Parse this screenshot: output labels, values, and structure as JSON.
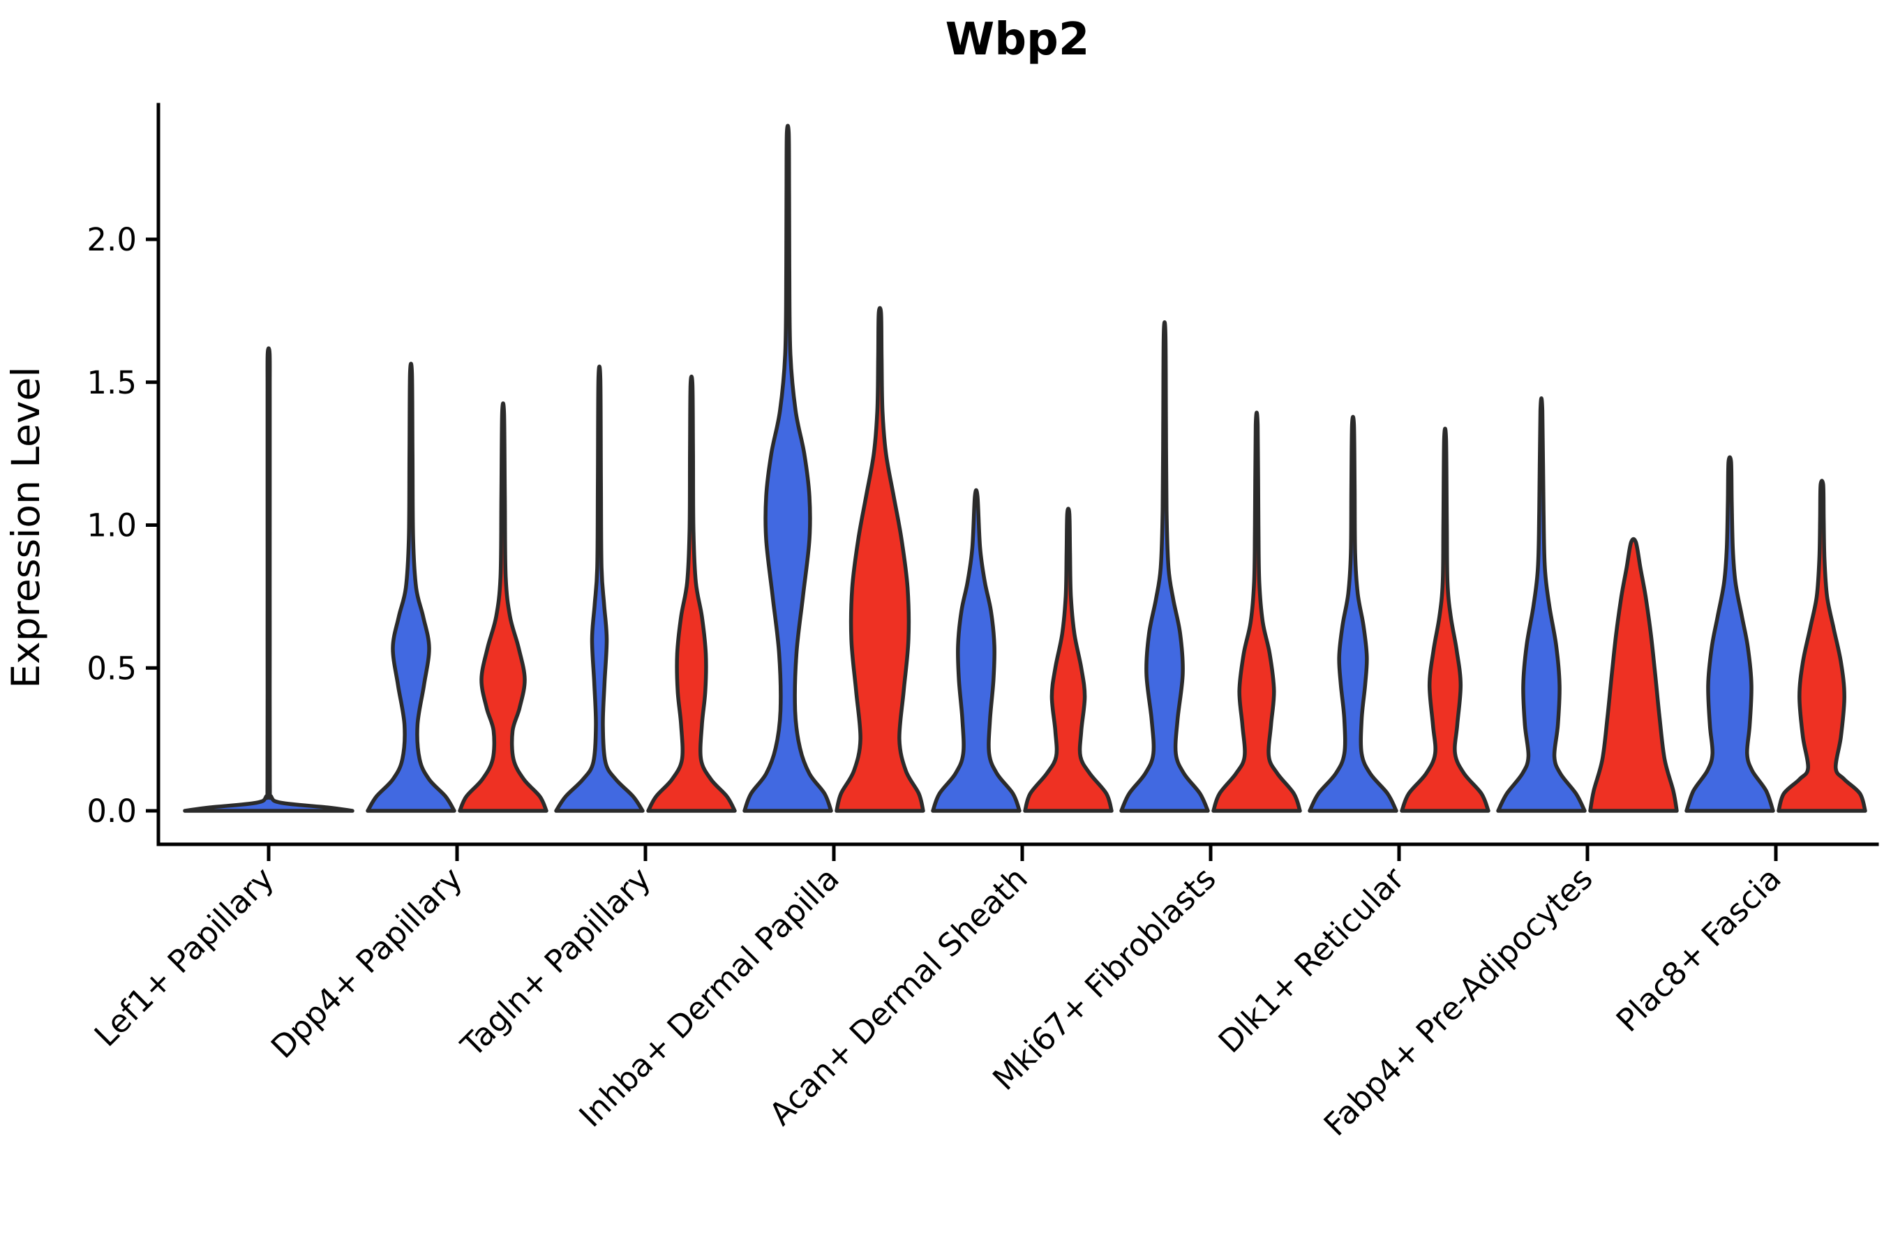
{
  "figure": {
    "background": "#ffffff"
  },
  "chart_data": {
    "type": "violin",
    "title": "Wbp2",
    "ylabel": "Expression Level",
    "xlabel": "",
    "grid": false,
    "legend": "none",
    "ytick_labels": [
      "0.0",
      "0.5",
      "1.0",
      "1.5",
      "2.0"
    ],
    "ytick_values": [
      0.0,
      0.5,
      1.0,
      1.5,
      2.0
    ],
    "ylim": [
      -0.12,
      2.47
    ],
    "colors": {
      "group1_fill": "#4169E1",
      "group2_fill": "#EE3123",
      "violin_edge": "#2B2B2B",
      "axis": "#000000"
    },
    "series_names": [
      "group-1-blue",
      "group-2-red"
    ],
    "categories": [
      {
        "label": "Lef1+ Papillary",
        "violins": [
          {
            "group": "combined",
            "color_key": "group1_fill",
            "span": "full",
            "max_expression": 1.6,
            "profile": [
              [
                0,
                1.0
              ],
              [
                0.012,
                0.7
              ],
              [
                0.028,
                0.15
              ],
              [
                0.05,
                0.03
              ],
              [
                0.1,
                0.014
              ],
              [
                0.6,
                0.013
              ],
              [
                1.1,
                0.013
              ],
              [
                1.45,
                0.013
              ],
              [
                1.6,
                0.012
              ]
            ]
          }
        ]
      },
      {
        "label": "Dpp4+ Papillary",
        "violins": [
          {
            "group": "blue",
            "color_key": "group1_fill",
            "span": "half",
            "max_expression": 1.53,
            "profile": [
              [
                0,
                1.0
              ],
              [
                0.05,
                0.8
              ],
              [
                0.11,
                0.42
              ],
              [
                0.18,
                0.2
              ],
              [
                0.3,
                0.15
              ],
              [
                0.44,
                0.3
              ],
              [
                0.57,
                0.42
              ],
              [
                0.68,
                0.28
              ],
              [
                0.78,
                0.12
              ],
              [
                0.95,
                0.05
              ],
              [
                1.25,
                0.035
              ],
              [
                1.53,
                0.022
              ]
            ]
          },
          {
            "group": "red",
            "color_key": "group2_fill",
            "span": "half",
            "max_expression": 1.39,
            "profile": [
              [
                0,
                1.0
              ],
              [
                0.05,
                0.85
              ],
              [
                0.11,
                0.48
              ],
              [
                0.18,
                0.24
              ],
              [
                0.28,
                0.22
              ],
              [
                0.36,
                0.38
              ],
              [
                0.46,
                0.5
              ],
              [
                0.57,
                0.36
              ],
              [
                0.68,
                0.16
              ],
              [
                0.82,
                0.06
              ],
              [
                1.1,
                0.04
              ],
              [
                1.39,
                0.022
              ]
            ]
          }
        ]
      },
      {
        "label": "Tagln+ Papillary",
        "violins": [
          {
            "group": "blue",
            "color_key": "group1_fill",
            "span": "half",
            "max_expression": 1.51,
            "profile": [
              [
                0,
                1.0
              ],
              [
                0.05,
                0.78
              ],
              [
                0.11,
                0.38
              ],
              [
                0.17,
                0.14
              ],
              [
                0.3,
                0.08
              ],
              [
                0.45,
                0.12
              ],
              [
                0.6,
                0.17
              ],
              [
                0.72,
                0.11
              ],
              [
                0.85,
                0.05
              ],
              [
                1.15,
                0.035
              ],
              [
                1.51,
                0.022
              ]
            ]
          },
          {
            "group": "red",
            "color_key": "group2_fill",
            "span": "half",
            "max_expression": 1.49,
            "profile": [
              [
                0,
                1.0
              ],
              [
                0.05,
                0.82
              ],
              [
                0.11,
                0.45
              ],
              [
                0.18,
                0.22
              ],
              [
                0.3,
                0.24
              ],
              [
                0.42,
                0.32
              ],
              [
                0.55,
                0.33
              ],
              [
                0.68,
                0.24
              ],
              [
                0.8,
                0.1
              ],
              [
                0.98,
                0.045
              ],
              [
                1.25,
                0.035
              ],
              [
                1.49,
                0.022
              ]
            ]
          }
        ]
      },
      {
        "label": "Inhba+ Dermal Papilla",
        "violins": [
          {
            "group": "blue",
            "color_key": "group1_fill",
            "span": "half",
            "max_expression": 2.37,
            "profile": [
              [
                0,
                1.0
              ],
              [
                0.06,
                0.85
              ],
              [
                0.13,
                0.5
              ],
              [
                0.22,
                0.28
              ],
              [
                0.35,
                0.17
              ],
              [
                0.55,
                0.2
              ],
              [
                0.75,
                0.35
              ],
              [
                0.95,
                0.5
              ],
              [
                1.1,
                0.5
              ],
              [
                1.25,
                0.38
              ],
              [
                1.4,
                0.18
              ],
              [
                1.6,
                0.06
              ],
              [
                1.9,
                0.035
              ],
              [
                2.15,
                0.03
              ],
              [
                2.37,
                0.022
              ]
            ]
          },
          {
            "group": "red",
            "color_key": "group2_fill",
            "span": "half",
            "max_expression": 1.74,
            "profile": [
              [
                0,
                1.0
              ],
              [
                0.06,
                0.9
              ],
              [
                0.14,
                0.6
              ],
              [
                0.25,
                0.45
              ],
              [
                0.42,
                0.55
              ],
              [
                0.6,
                0.66
              ],
              [
                0.78,
                0.64
              ],
              [
                0.95,
                0.5
              ],
              [
                1.1,
                0.32
              ],
              [
                1.25,
                0.14
              ],
              [
                1.4,
                0.06
              ],
              [
                1.58,
                0.04
              ],
              [
                1.74,
                0.028
              ]
            ]
          }
        ]
      },
      {
        "label": "Acan+ Dermal Sheath",
        "violins": [
          {
            "group": "blue",
            "color_key": "group1_fill",
            "span": "half",
            "max_expression": 1.1,
            "profile": [
              [
                0,
                1.0
              ],
              [
                0.06,
                0.85
              ],
              [
                0.13,
                0.48
              ],
              [
                0.2,
                0.3
              ],
              [
                0.32,
                0.32
              ],
              [
                0.46,
                0.4
              ],
              [
                0.58,
                0.42
              ],
              [
                0.7,
                0.34
              ],
              [
                0.8,
                0.2
              ],
              [
                0.92,
                0.09
              ],
              [
                1.1,
                0.03
              ]
            ]
          },
          {
            "group": "red",
            "color_key": "group2_fill",
            "span": "half",
            "max_expression": 1.04,
            "profile": [
              [
                0,
                1.0
              ],
              [
                0.06,
                0.88
              ],
              [
                0.13,
                0.5
              ],
              [
                0.19,
                0.28
              ],
              [
                0.28,
                0.3
              ],
              [
                0.4,
                0.38
              ],
              [
                0.5,
                0.3
              ],
              [
                0.62,
                0.14
              ],
              [
                0.75,
                0.06
              ],
              [
                0.9,
                0.04
              ],
              [
                1.04,
                0.025
              ]
            ]
          }
        ]
      },
      {
        "label": "Mki67+ Fibroblasts",
        "violins": [
          {
            "group": "blue",
            "color_key": "group1_fill",
            "span": "half",
            "max_expression": 1.67,
            "profile": [
              [
                0,
                1.0
              ],
              [
                0.06,
                0.82
              ],
              [
                0.13,
                0.45
              ],
              [
                0.2,
                0.26
              ],
              [
                0.32,
                0.3
              ],
              [
                0.48,
                0.42
              ],
              [
                0.62,
                0.36
              ],
              [
                0.74,
                0.2
              ],
              [
                0.85,
                0.09
              ],
              [
                1.05,
                0.045
              ],
              [
                1.35,
                0.032
              ],
              [
                1.67,
                0.02
              ]
            ]
          },
          {
            "group": "red",
            "color_key": "group2_fill",
            "span": "half",
            "max_expression": 1.35,
            "profile": [
              [
                0,
                1.0
              ],
              [
                0.06,
                0.86
              ],
              [
                0.13,
                0.48
              ],
              [
                0.19,
                0.28
              ],
              [
                0.3,
                0.33
              ],
              [
                0.42,
                0.4
              ],
              [
                0.55,
                0.3
              ],
              [
                0.66,
                0.14
              ],
              [
                0.8,
                0.06
              ],
              [
                1.0,
                0.04
              ],
              [
                1.35,
                0.022
              ]
            ]
          }
        ]
      },
      {
        "label": "Dlk1+ Reticular",
        "violins": [
          {
            "group": "blue",
            "color_key": "group1_fill",
            "span": "half",
            "max_expression": 1.35,
            "profile": [
              [
                0,
                1.0
              ],
              [
                0.06,
                0.8
              ],
              [
                0.13,
                0.4
              ],
              [
                0.2,
                0.2
              ],
              [
                0.32,
                0.2
              ],
              [
                0.44,
                0.28
              ],
              [
                0.54,
                0.32
              ],
              [
                0.65,
                0.24
              ],
              [
                0.76,
                0.11
              ],
              [
                0.9,
                0.05
              ],
              [
                1.12,
                0.038
              ],
              [
                1.35,
                0.022
              ]
            ]
          },
          {
            "group": "red",
            "color_key": "group2_fill",
            "span": "half",
            "max_expression": 1.3,
            "profile": [
              [
                0,
                1.0
              ],
              [
                0.06,
                0.84
              ],
              [
                0.13,
                0.44
              ],
              [
                0.2,
                0.23
              ],
              [
                0.3,
                0.28
              ],
              [
                0.44,
                0.36
              ],
              [
                0.56,
                0.27
              ],
              [
                0.68,
                0.13
              ],
              [
                0.8,
                0.055
              ],
              [
                1.0,
                0.04
              ],
              [
                1.3,
                0.022
              ]
            ]
          }
        ]
      },
      {
        "label": "Fabp4+ Pre-Adipocytes",
        "violins": [
          {
            "group": "blue",
            "color_key": "group1_fill",
            "span": "half",
            "max_expression": 1.4,
            "profile": [
              [
                0,
                1.0
              ],
              [
                0.06,
                0.8
              ],
              [
                0.13,
                0.44
              ],
              [
                0.19,
                0.3
              ],
              [
                0.3,
                0.38
              ],
              [
                0.44,
                0.42
              ],
              [
                0.58,
                0.34
              ],
              [
                0.72,
                0.18
              ],
              [
                0.85,
                0.08
              ],
              [
                1.05,
                0.05
              ],
              [
                1.4,
                0.022
              ]
            ]
          },
          {
            "group": "red",
            "color_key": "group2_fill",
            "span": "half",
            "max_expression": 0.94,
            "profile": [
              [
                0,
                1.0
              ],
              [
                0.07,
                0.92
              ],
              [
                0.18,
                0.72
              ],
              [
                0.33,
                0.6
              ],
              [
                0.48,
                0.5
              ],
              [
                0.62,
                0.4
              ],
              [
                0.75,
                0.28
              ],
              [
                0.85,
                0.16
              ],
              [
                0.94,
                0.055
              ]
            ]
          }
        ]
      },
      {
        "label": "Plac8+ Fascia",
        "violins": [
          {
            "group": "blue",
            "color_key": "group1_fill",
            "span": "half",
            "max_expression": 1.22,
            "profile": [
              [
                0,
                1.0
              ],
              [
                0.07,
                0.84
              ],
              [
                0.14,
                0.52
              ],
              [
                0.2,
                0.4
              ],
              [
                0.3,
                0.46
              ],
              [
                0.44,
                0.5
              ],
              [
                0.57,
                0.42
              ],
              [
                0.68,
                0.28
              ],
              [
                0.8,
                0.13
              ],
              [
                0.92,
                0.07
              ],
              [
                1.08,
                0.045
              ],
              [
                1.22,
                0.03
              ]
            ]
          },
          {
            "group": "red",
            "color_key": "group2_fill",
            "span": "half",
            "max_expression": 1.14,
            "profile": [
              [
                0,
                1.0
              ],
              [
                0.06,
                0.88
              ],
              [
                0.11,
                0.52
              ],
              [
                0.15,
                0.32
              ],
              [
                0.26,
                0.44
              ],
              [
                0.4,
                0.52
              ],
              [
                0.52,
                0.44
              ],
              [
                0.64,
                0.27
              ],
              [
                0.75,
                0.12
              ],
              [
                0.88,
                0.06
              ],
              [
                1.02,
                0.042
              ],
              [
                1.14,
                0.03
              ]
            ]
          }
        ]
      }
    ]
  }
}
